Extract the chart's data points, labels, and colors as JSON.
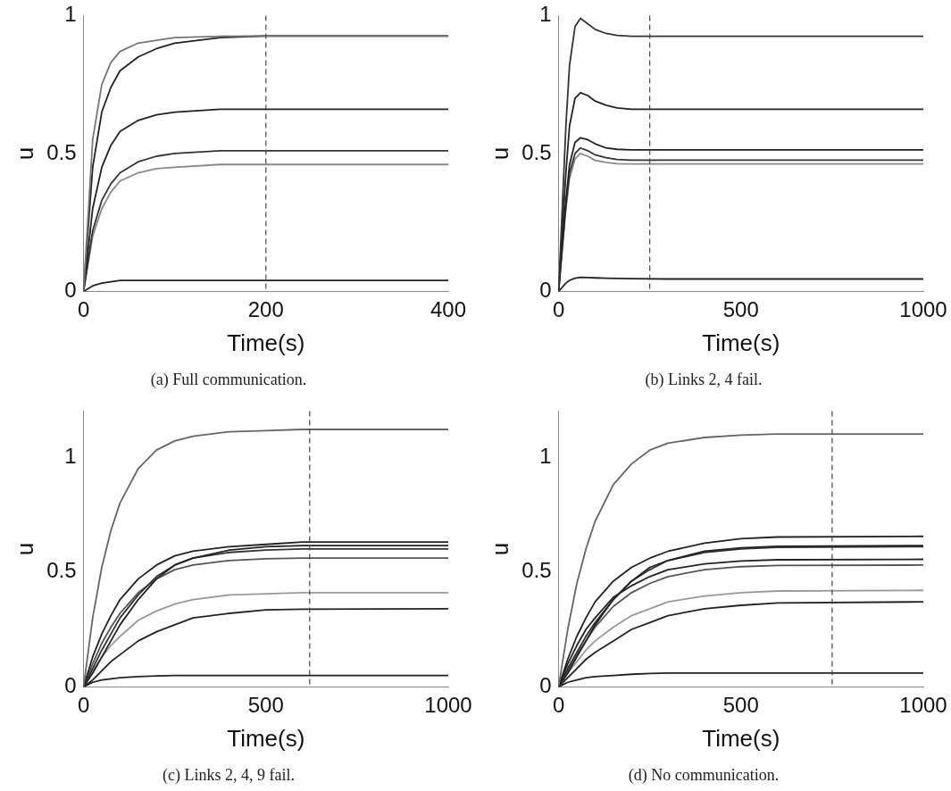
{
  "chart_data": [
    {
      "type": "line",
      "title": "(a) Full communication.",
      "xlabel": "Time(s)",
      "ylabel": "u",
      "marker": "none",
      "line_style": "solid",
      "xlim": [
        0,
        400
      ],
      "ylim": [
        0,
        1
      ],
      "xticks": [
        0,
        200,
        400
      ],
      "yticks": [
        0,
        0.5,
        1
      ],
      "x": [
        0,
        10,
        20,
        30,
        40,
        60,
        80,
        100,
        150,
        200,
        400
      ],
      "series": [
        {
          "color": "#777777",
          "values": [
            0,
            0.55,
            0.75,
            0.83,
            0.87,
            0.9,
            0.91,
            0.92,
            0.925,
            0.926,
            0.926
          ]
        },
        {
          "color": "#222222",
          "values": [
            0,
            0.45,
            0.65,
            0.74,
            0.8,
            0.85,
            0.88,
            0.9,
            0.92,
            0.926,
            0.926
          ]
        },
        {
          "color": "#222222",
          "values": [
            0,
            0.3,
            0.45,
            0.53,
            0.58,
            0.62,
            0.64,
            0.65,
            0.66,
            0.66,
            0.66
          ]
        },
        {
          "color": "#333333",
          "values": [
            0,
            0.22,
            0.33,
            0.39,
            0.43,
            0.47,
            0.49,
            0.5,
            0.51,
            0.51,
            0.51
          ]
        },
        {
          "color": "#888888",
          "values": [
            0,
            0.2,
            0.3,
            0.36,
            0.4,
            0.43,
            0.445,
            0.45,
            0.46,
            0.46,
            0.46
          ]
        },
        {
          "color": "#222222",
          "values": [
            0,
            0.02,
            0.03,
            0.035,
            0.04,
            0.04,
            0.04,
            0.04,
            0.04,
            0.04,
            0.04
          ]
        }
      ],
      "ref_lines": [
        {
          "axis": "x",
          "value": 200,
          "line_style": "dashed",
          "color": "#444444"
        }
      ]
    },
    {
      "type": "line",
      "title": "(b) Links 2, 4 fail.",
      "xlabel": "Time(s)",
      "ylabel": "u",
      "marker": "none",
      "line_style": "solid",
      "xlim": [
        0,
        1000
      ],
      "ylim": [
        0,
        1
      ],
      "xticks": [
        0,
        500,
        1000
      ],
      "yticks": [
        0,
        0.5,
        1
      ],
      "x": [
        0,
        10,
        20,
        30,
        45,
        60,
        80,
        100,
        130,
        160,
        200,
        300,
        1000
      ],
      "series": [
        {
          "color": "#333333",
          "values": [
            0,
            0.3,
            0.6,
            0.82,
            0.96,
            0.99,
            0.97,
            0.95,
            0.935,
            0.928,
            0.925,
            0.925,
            0.925
          ]
        },
        {
          "color": "#222222",
          "values": [
            0,
            0.22,
            0.43,
            0.6,
            0.7,
            0.72,
            0.71,
            0.69,
            0.675,
            0.665,
            0.66,
            0.66,
            0.66
          ]
        },
        {
          "color": "#222222",
          "values": [
            0,
            0.17,
            0.33,
            0.46,
            0.54,
            0.557,
            0.55,
            0.535,
            0.52,
            0.515,
            0.513,
            0.513,
            0.513
          ]
        },
        {
          "color": "#333333",
          "values": [
            0,
            0.16,
            0.31,
            0.43,
            0.5,
            0.52,
            0.51,
            0.495,
            0.485,
            0.478,
            0.476,
            0.476,
            0.476
          ]
        },
        {
          "color": "#888888",
          "values": [
            0,
            0.15,
            0.3,
            0.41,
            0.48,
            0.5,
            0.49,
            0.475,
            0.468,
            0.463,
            0.462,
            0.462,
            0.462
          ]
        },
        {
          "color": "#222222",
          "values": [
            0,
            0.015,
            0.03,
            0.04,
            0.048,
            0.051,
            0.05,
            0.049,
            0.048,
            0.047,
            0.046,
            0.045,
            0.045
          ]
        }
      ],
      "ref_lines": [
        {
          "axis": "x",
          "value": 250,
          "line_style": "dashed",
          "color": "#444444"
        }
      ]
    },
    {
      "type": "line",
      "title": "(c) Links 2, 4, 9 fail.",
      "xlabel": "Time(s)",
      "ylabel": "u",
      "marker": "none",
      "line_style": "solid",
      "xlim": [
        0,
        1000
      ],
      "ylim": [
        0,
        1.2
      ],
      "xticks": [
        0,
        500,
        1000
      ],
      "yticks": [
        0,
        0.5,
        1
      ],
      "x": [
        0,
        25,
        50,
        75,
        100,
        150,
        200,
        250,
        300,
        400,
        500,
        600,
        1000
      ],
      "series": [
        {
          "color": "#666666",
          "values": [
            0,
            0.3,
            0.52,
            0.68,
            0.8,
            0.95,
            1.03,
            1.07,
            1.09,
            1.11,
            1.115,
            1.12,
            1.12
          ]
        },
        {
          "color": "#222222",
          "values": [
            0,
            0.13,
            0.23,
            0.31,
            0.38,
            0.47,
            0.53,
            0.57,
            0.59,
            0.61,
            0.62,
            0.63,
            0.63
          ]
        },
        {
          "color": "#222222",
          "values": [
            0,
            0.06,
            0.13,
            0.2,
            0.27,
            0.38,
            0.47,
            0.53,
            0.56,
            0.595,
            0.61,
            0.615,
            0.615
          ]
        },
        {
          "color": "#333333",
          "values": [
            0,
            0.08,
            0.16,
            0.23,
            0.3,
            0.4,
            0.48,
            0.53,
            0.56,
            0.585,
            0.595,
            0.6,
            0.6
          ]
        },
        {
          "color": "#555555",
          "values": [
            0,
            0.1,
            0.19,
            0.26,
            0.32,
            0.41,
            0.47,
            0.51,
            0.53,
            0.55,
            0.557,
            0.56,
            0.56
          ]
        },
        {
          "color": "#999999",
          "values": [
            0,
            0.07,
            0.13,
            0.18,
            0.22,
            0.29,
            0.33,
            0.36,
            0.38,
            0.4,
            0.405,
            0.41,
            0.41
          ]
        },
        {
          "color": "#222222",
          "values": [
            0,
            0.03,
            0.07,
            0.11,
            0.14,
            0.2,
            0.24,
            0.27,
            0.3,
            0.32,
            0.335,
            0.338,
            0.34
          ]
        },
        {
          "color": "#222222",
          "values": [
            0,
            0.02,
            0.03,
            0.035,
            0.04,
            0.045,
            0.048,
            0.05,
            0.05,
            0.05,
            0.05,
            0.05,
            0.05
          ]
        }
      ],
      "ref_lines": [
        {
          "axis": "x",
          "value": 620,
          "line_style": "dashed",
          "color": "#444444"
        }
      ]
    },
    {
      "type": "line",
      "title": "(d) No communication.",
      "xlabel": "Time(s)",
      "ylabel": "u",
      "marker": "none",
      "line_style": "solid",
      "xlim": [
        0,
        1000
      ],
      "ylim": [
        0,
        1.2
      ],
      "xticks": [
        0,
        500,
        1000
      ],
      "yticks": [
        0,
        0.5,
        1
      ],
      "x": [
        0,
        25,
        50,
        75,
        100,
        150,
        200,
        250,
        300,
        400,
        500,
        600,
        1000
      ],
      "series": [
        {
          "color": "#666666",
          "values": [
            0,
            0.25,
            0.45,
            0.6,
            0.72,
            0.88,
            0.97,
            1.03,
            1.06,
            1.085,
            1.095,
            1.1,
            1.1
          ]
        },
        {
          "color": "#222222",
          "values": [
            0,
            0.12,
            0.22,
            0.3,
            0.37,
            0.46,
            0.52,
            0.56,
            0.59,
            0.625,
            0.645,
            0.652,
            0.655
          ]
        },
        {
          "color": "#222222",
          "values": [
            0,
            0.06,
            0.13,
            0.2,
            0.27,
            0.38,
            0.46,
            0.52,
            0.55,
            0.59,
            0.605,
            0.612,
            0.615
          ]
        },
        {
          "color": "#333333",
          "values": [
            0,
            0.08,
            0.15,
            0.22,
            0.28,
            0.38,
            0.46,
            0.51,
            0.55,
            0.585,
            0.6,
            0.607,
            0.61
          ]
        },
        {
          "color": "#222222",
          "values": [
            0,
            0.1,
            0.18,
            0.25,
            0.3,
            0.39,
            0.44,
            0.48,
            0.51,
            0.535,
            0.548,
            0.553,
            0.555
          ]
        },
        {
          "color": "#555555",
          "values": [
            0,
            0.07,
            0.14,
            0.2,
            0.26,
            0.35,
            0.41,
            0.45,
            0.48,
            0.51,
            0.523,
            0.528,
            0.53
          ]
        },
        {
          "color": "#999999",
          "values": [
            0,
            0.06,
            0.11,
            0.16,
            0.2,
            0.26,
            0.31,
            0.34,
            0.37,
            0.395,
            0.41,
            0.417,
            0.42
          ]
        },
        {
          "color": "#222222",
          "values": [
            0,
            0.04,
            0.08,
            0.12,
            0.15,
            0.2,
            0.25,
            0.28,
            0.31,
            0.34,
            0.355,
            0.365,
            0.37
          ]
        },
        {
          "color": "#222222",
          "values": [
            0,
            0.02,
            0.03,
            0.04,
            0.045,
            0.05,
            0.055,
            0.058,
            0.06,
            0.06,
            0.06,
            0.06,
            0.06
          ]
        }
      ],
      "ref_lines": [
        {
          "axis": "x",
          "value": 750,
          "line_style": "dashed",
          "color": "#444444"
        }
      ]
    }
  ]
}
